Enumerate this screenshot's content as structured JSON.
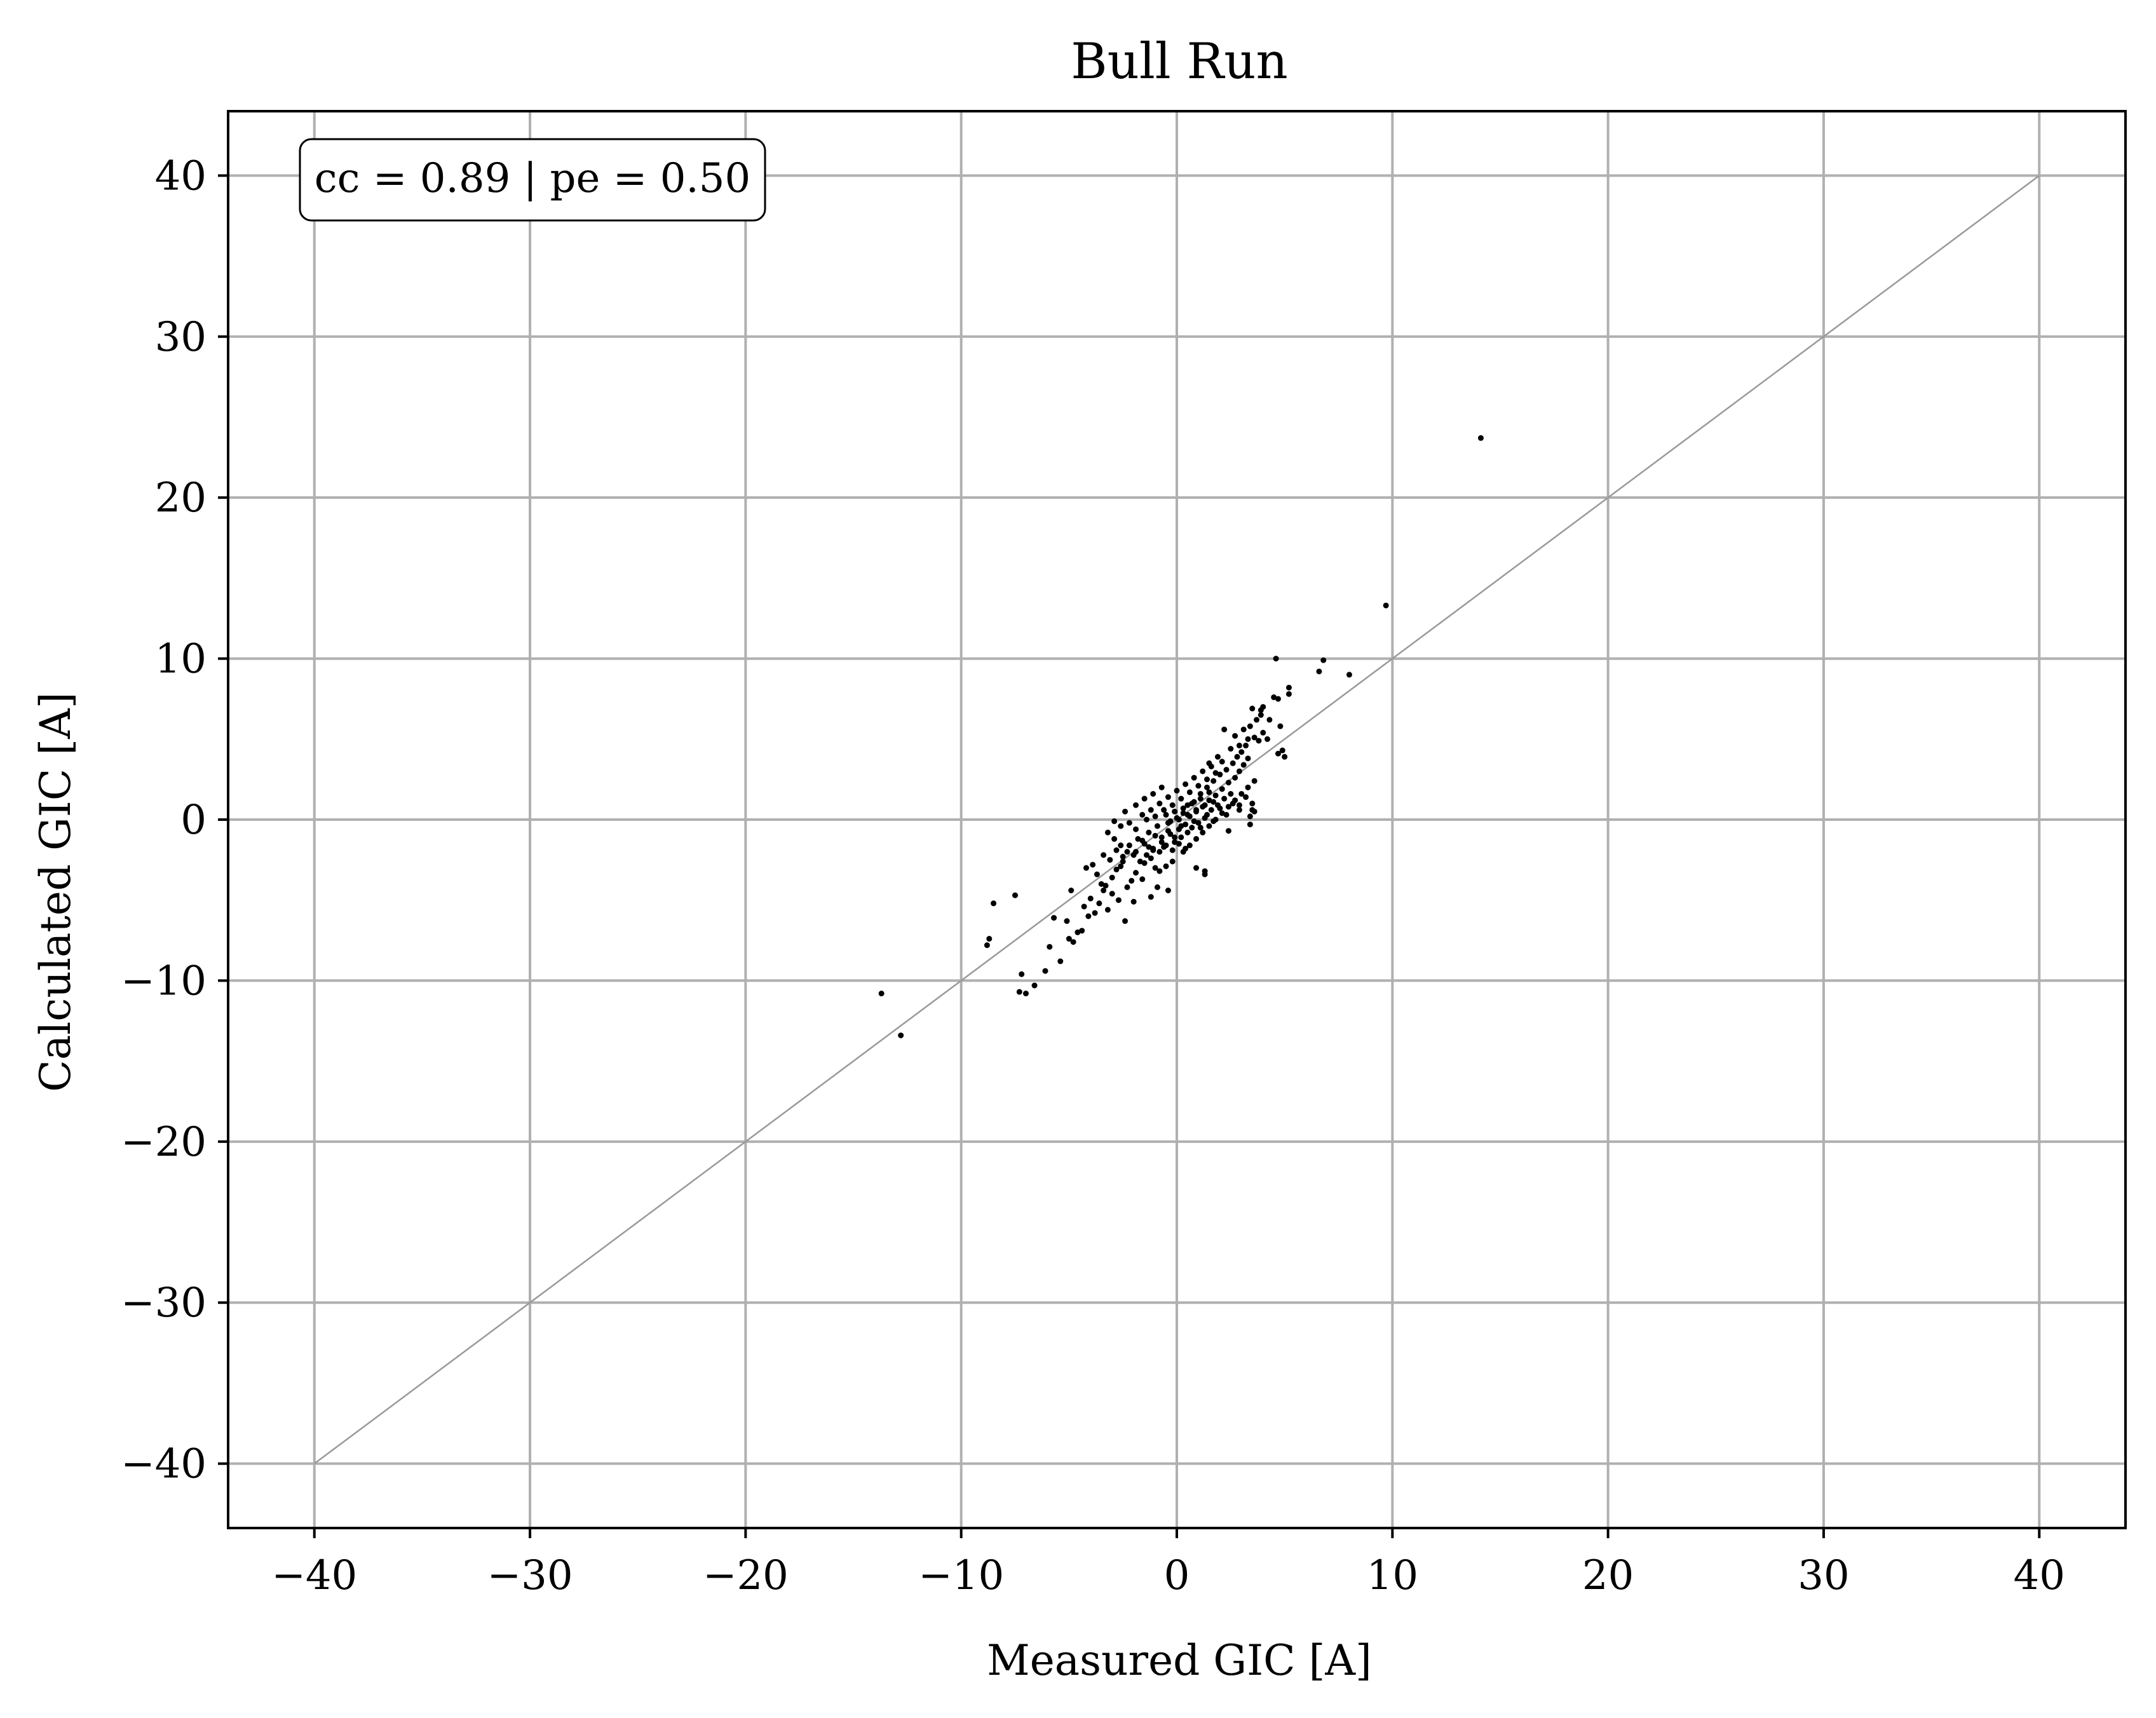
{
  "chart_data": {
    "type": "scatter",
    "title": "Bull Run",
    "xlabel": "Measured GIC [A]",
    "ylabel": "Calculated GIC [A]",
    "xlim": [
      -44,
      44
    ],
    "ylim": [
      -44,
      44
    ],
    "xticks": [
      -40,
      -30,
      -20,
      -10,
      0,
      10,
      20,
      30,
      40
    ],
    "yticks": [
      -40,
      -30,
      -20,
      -10,
      0,
      10,
      20,
      30,
      40
    ],
    "xtick_labels": [
      "−40",
      "−30",
      "−20",
      "−10",
      "0",
      "10",
      "20",
      "30",
      "40"
    ],
    "ytick_labels": [
      "−40",
      "−30",
      "−20",
      "−10",
      "0",
      "10",
      "20",
      "30",
      "40"
    ],
    "grid": true,
    "annotation": "cc = 0.89 | pe = 0.50",
    "reference_line": {
      "from": [
        -40,
        -40
      ],
      "to": [
        40,
        40
      ],
      "color": "#999999"
    },
    "colors": {
      "points": "#000000",
      "grid": "#b0b0b0",
      "reference_line": "#999999"
    },
    "series": [
      {
        "points": [
          [
            14.1,
            23.7
          ],
          [
            9.7,
            13.3
          ],
          [
            -13.7,
            -10.8
          ],
          [
            -12.8,
            -13.4
          ],
          [
            -7.3,
            -10.7
          ],
          [
            -7.0,
            -10.8
          ],
          [
            -6.6,
            -10.3
          ],
          [
            -7.2,
            -9.6
          ],
          [
            -8.8,
            -7.8
          ],
          [
            -8.7,
            -7.4
          ],
          [
            -8.5,
            -5.2
          ],
          [
            -7.5,
            -4.7
          ],
          [
            8.0,
            9.0
          ],
          [
            6.8,
            9.9
          ],
          [
            6.6,
            9.2
          ],
          [
            4.6,
            10.0
          ],
          [
            5.2,
            8.2
          ],
          [
            5.2,
            7.8
          ],
          [
            4.7,
            7.5
          ],
          [
            4.5,
            7.6
          ],
          [
            4.0,
            7.0
          ],
          [
            3.9,
            6.8
          ],
          [
            3.7,
            6.2
          ],
          [
            3.5,
            6.9
          ],
          [
            3.1,
            5.6
          ],
          [
            3.4,
            5.8
          ],
          [
            2.7,
            5.2
          ],
          [
            2.2,
            5.6
          ],
          [
            4.8,
            5.8
          ],
          [
            4.9,
            4.3
          ],
          [
            5.0,
            3.9
          ],
          [
            4.7,
            4.1
          ],
          [
            3.5,
            0.6
          ],
          [
            3.6,
            0.5
          ],
          [
            3.4,
            -0.3
          ],
          [
            3.4,
            0.2
          ],
          [
            2.9,
            0.9
          ],
          [
            2.4,
            -0.7
          ],
          [
            1.3,
            -3.2
          ],
          [
            1.3,
            -3.4
          ],
          [
            0.9,
            -3.0
          ],
          [
            -5.7,
            -6.1
          ],
          [
            -5.9,
            -7.9
          ],
          [
            -6.1,
            -9.4
          ],
          [
            -5.4,
            -8.8
          ],
          [
            -5.0,
            -7.4
          ],
          [
            -4.6,
            -7.0
          ],
          [
            -4.4,
            -6.9
          ],
          [
            -4.8,
            -7.6
          ],
          [
            -4.1,
            -6.0
          ],
          [
            -4.9,
            -4.4
          ],
          [
            -5.1,
            -6.3
          ],
          [
            -3.8,
            -5.8
          ],
          [
            -3.6,
            -5.2
          ],
          [
            -3.4,
            -4.4
          ],
          [
            -3.3,
            -4.1
          ],
          [
            -3.0,
            -3.6
          ],
          [
            -2.8,
            -3.1
          ],
          [
            -2.6,
            -2.9
          ],
          [
            -2.5,
            -2.6
          ],
          [
            -3.0,
            -4.6
          ],
          [
            -2.7,
            -5.0
          ],
          [
            -2.3,
            -4.2
          ],
          [
            -2.1,
            -3.8
          ],
          [
            -1.6,
            -3.7
          ],
          [
            -1.9,
            -3.3
          ],
          [
            -1.5,
            -2.7
          ],
          [
            -1.2,
            -2.4
          ],
          [
            -1.0,
            -3.0
          ],
          [
            -0.8,
            -3.2
          ],
          [
            -0.5,
            -2.9
          ],
          [
            -0.2,
            -2.6
          ],
          [
            -2.9,
            -1.2
          ],
          [
            -2.6,
            -1.6
          ],
          [
            -2.3,
            -2.0
          ],
          [
            -2.0,
            -2.2
          ],
          [
            -1.8,
            -1.2
          ],
          [
            -1.5,
            -1.5
          ],
          [
            -1.3,
            -0.8
          ],
          [
            -1.1,
            -1.9
          ],
          [
            -0.9,
            -0.4
          ],
          [
            -0.7,
            -1.1
          ],
          [
            -0.6,
            -1.7
          ],
          [
            -0.4,
            -0.2
          ],
          [
            -0.3,
            -0.9
          ],
          [
            -0.1,
            -1.4
          ],
          [
            0.0,
            0.1
          ],
          [
            0.1,
            -0.6
          ],
          [
            0.2,
            -1.1
          ],
          [
            0.3,
            0.4
          ],
          [
            0.4,
            -0.3
          ],
          [
            0.5,
            0.9
          ],
          [
            0.6,
            0.2
          ],
          [
            0.7,
            -0.5
          ],
          [
            0.8,
            1.1
          ],
          [
            0.9,
            0.5
          ],
          [
            1.0,
            -0.2
          ],
          [
            1.1,
            1.6
          ],
          [
            1.2,
            0.8
          ],
          [
            1.3,
            0.1
          ],
          [
            1.4,
            2.0
          ],
          [
            1.5,
            1.2
          ],
          [
            1.6,
            0.6
          ],
          [
            1.7,
            2.4
          ],
          [
            1.8,
            1.5
          ],
          [
            1.9,
            0.9
          ],
          [
            2.0,
            2.8
          ],
          [
            2.1,
            1.9
          ],
          [
            2.2,
            1.3
          ],
          [
            2.3,
            3.1
          ],
          [
            2.4,
            2.3
          ],
          [
            2.5,
            1.6
          ],
          [
            2.6,
            3.5
          ],
          [
            2.7,
            2.6
          ],
          [
            2.8,
            3.9
          ],
          [
            2.9,
            3.0
          ],
          [
            3.0,
            4.2
          ],
          [
            3.1,
            3.4
          ],
          [
            3.2,
            4.6
          ],
          [
            3.3,
            3.8
          ],
          [
            -2.2,
            -0.2
          ],
          [
            -1.9,
            -0.6
          ],
          [
            -1.6,
            0.3
          ],
          [
            -1.4,
            0.0
          ],
          [
            -1.2,
            0.6
          ],
          [
            -1.0,
            0.2
          ],
          [
            -0.8,
            1.0
          ],
          [
            -0.6,
            0.6
          ],
          [
            -0.4,
            1.4
          ],
          [
            -0.2,
            0.9
          ],
          [
            0.0,
            1.8
          ],
          [
            0.2,
            1.3
          ],
          [
            0.4,
            2.2
          ],
          [
            0.6,
            1.7
          ],
          [
            0.8,
            2.6
          ],
          [
            1.0,
            2.1
          ],
          [
            1.2,
            3.0
          ],
          [
            1.4,
            2.5
          ],
          [
            1.6,
            3.3
          ],
          [
            1.8,
            2.9
          ],
          [
            0.3,
            -2.0
          ],
          [
            0.6,
            -1.6
          ],
          [
            0.9,
            -1.2
          ],
          [
            1.2,
            -0.8
          ],
          [
            1.5,
            -0.4
          ],
          [
            1.8,
            0.0
          ],
          [
            2.1,
            0.4
          ],
          [
            2.4,
            0.8
          ],
          [
            2.7,
            1.2
          ],
          [
            3.0,
            1.6
          ],
          [
            3.3,
            2.0
          ],
          [
            3.6,
            2.4
          ],
          [
            -3.4,
            -2.2
          ],
          [
            -3.1,
            -2.5
          ],
          [
            -2.8,
            -1.9
          ],
          [
            -2.5,
            -2.3
          ],
          [
            -2.2,
            -1.6
          ],
          [
            -1.9,
            -2.0
          ],
          [
            -1.6,
            -1.3
          ],
          [
            -1.3,
            -1.7
          ],
          [
            -1.0,
            -1.0
          ],
          [
            -0.7,
            -1.4
          ],
          [
            -0.4,
            -0.7
          ],
          [
            -0.1,
            -1.1
          ],
          [
            0.2,
            -0.4
          ],
          [
            0.5,
            -0.8
          ],
          [
            0.8,
            -0.1
          ],
          [
            1.1,
            -0.5
          ],
          [
            1.4,
            0.3
          ],
          [
            1.7,
            -0.1
          ],
          [
            2.0,
            0.7
          ],
          [
            2.3,
            0.3
          ],
          [
            2.6,
            1.0
          ],
          [
            2.9,
            0.6
          ],
          [
            3.2,
            1.4
          ],
          [
            3.5,
            1.0
          ],
          [
            -0.5,
            0.3
          ],
          [
            -0.3,
            -0.1
          ],
          [
            -0.1,
            0.5
          ],
          [
            0.1,
            0.0
          ],
          [
            0.3,
            0.7
          ],
          [
            0.5,
            0.3
          ],
          [
            0.7,
            1.0
          ],
          [
            0.9,
            0.6
          ],
          [
            1.1,
            1.3
          ],
          [
            1.3,
            0.9
          ],
          [
            1.5,
            1.7
          ],
          [
            1.7,
            1.1
          ],
          [
            -1.7,
            -2.6
          ],
          [
            -1.4,
            -2.2
          ],
          [
            -1.1,
            -1.8
          ],
          [
            -0.8,
            -2.0
          ],
          [
            -0.5,
            -1.6
          ],
          [
            -0.2,
            -1.9
          ],
          [
            0.1,
            -1.5
          ],
          [
            0.4,
            -1.8
          ],
          [
            -4.2,
            -3.0
          ],
          [
            -3.9,
            -2.8
          ],
          [
            -3.7,
            -3.4
          ],
          [
            -3.5,
            -4.0
          ],
          [
            -4.0,
            -4.9
          ],
          [
            -4.3,
            -5.4
          ],
          [
            -3.2,
            -5.6
          ],
          [
            -2.4,
            -6.3
          ],
          [
            -2.0,
            -5.1
          ],
          [
            -1.2,
            -4.8
          ],
          [
            -0.9,
            -4.2
          ],
          [
            -0.4,
            -4.4
          ],
          [
            4.2,
            5.0
          ],
          [
            4.0,
            5.4
          ],
          [
            3.8,
            4.9
          ],
          [
            3.6,
            5.1
          ],
          [
            4.3,
            6.2
          ],
          [
            3.9,
            6.5
          ],
          [
            3.3,
            5.0
          ],
          [
            2.9,
            4.6
          ],
          [
            2.5,
            4.4
          ],
          [
            2.1,
            3.6
          ],
          [
            1.9,
            3.9
          ],
          [
            1.5,
            3.5
          ],
          [
            -1.9,
            0.9
          ],
          [
            -1.5,
            1.3
          ],
          [
            -1.1,
            1.6
          ],
          [
            -0.7,
            2.0
          ],
          [
            -2.4,
            0.5
          ],
          [
            -2.6,
            -0.4
          ],
          [
            -2.9,
            -0.1
          ],
          [
            -3.2,
            -0.8
          ]
        ]
      }
    ]
  }
}
